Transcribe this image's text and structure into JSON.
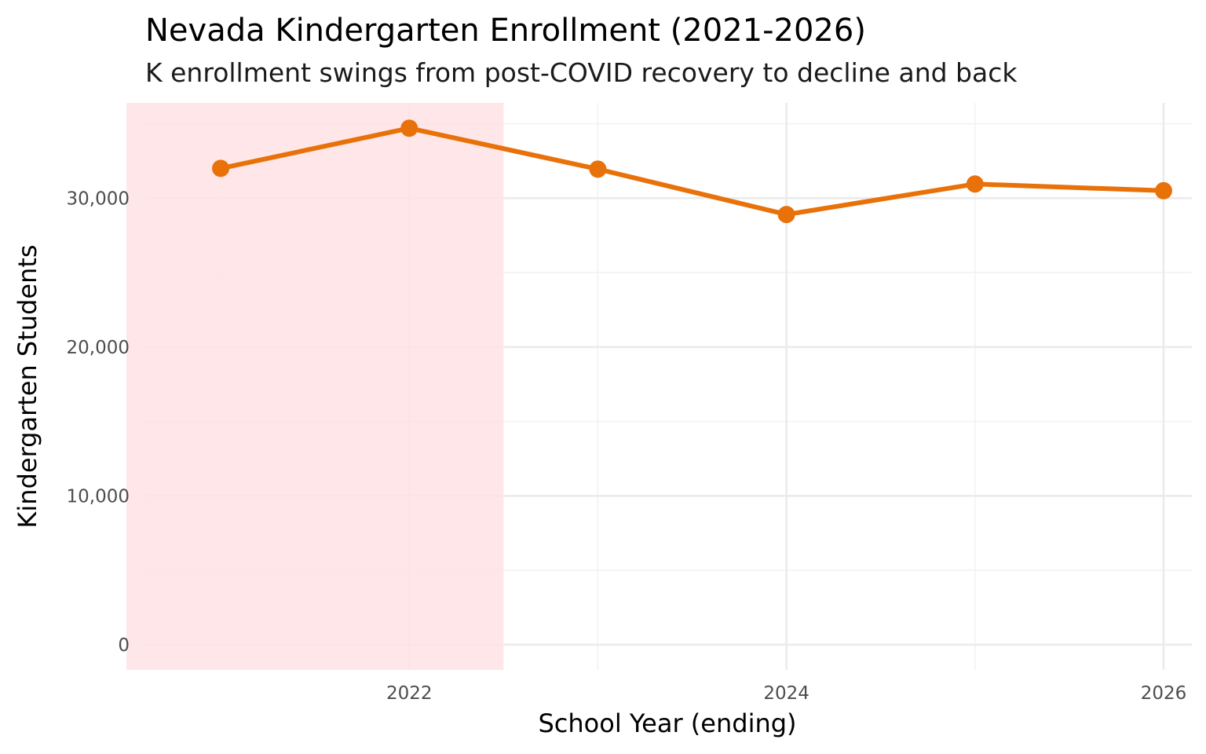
{
  "chart_data": {
    "type": "line",
    "title": "Nevada Kindergarten Enrollment (2021-2026)",
    "subtitle": "K enrollment swings from post-COVID recovery to decline and back",
    "xlabel": "School Year (ending)",
    "ylabel": "Kindergarten Students",
    "x": [
      2021,
      2022,
      2023,
      2024,
      2025,
      2026
    ],
    "series": [
      {
        "values": [
          32000,
          34700,
          31950,
          28900,
          30950,
          30500
        ],
        "color": "#e8710a"
      }
    ],
    "xlim": [
      2020.6,
      2026.15
    ],
    "ylim": [
      -1700,
      36400
    ],
    "x_ticks": [
      2022,
      2024,
      2026
    ],
    "x_tick_labels": [
      "2022",
      "2024",
      "2026"
    ],
    "x_minor_ticks": [
      2021,
      2023,
      2025
    ],
    "y_ticks": [
      0,
      10000,
      20000,
      30000
    ],
    "y_tick_labels": [
      "0",
      "10,000",
      "20,000",
      "30,000"
    ],
    "y_minor_ticks": [
      5000,
      15000,
      25000,
      35000
    ],
    "highlight_band": {
      "x_start": 2020.5,
      "x_end": 2022.5,
      "color": "#ffe3e5"
    },
    "grid": true,
    "legend": "none"
  }
}
